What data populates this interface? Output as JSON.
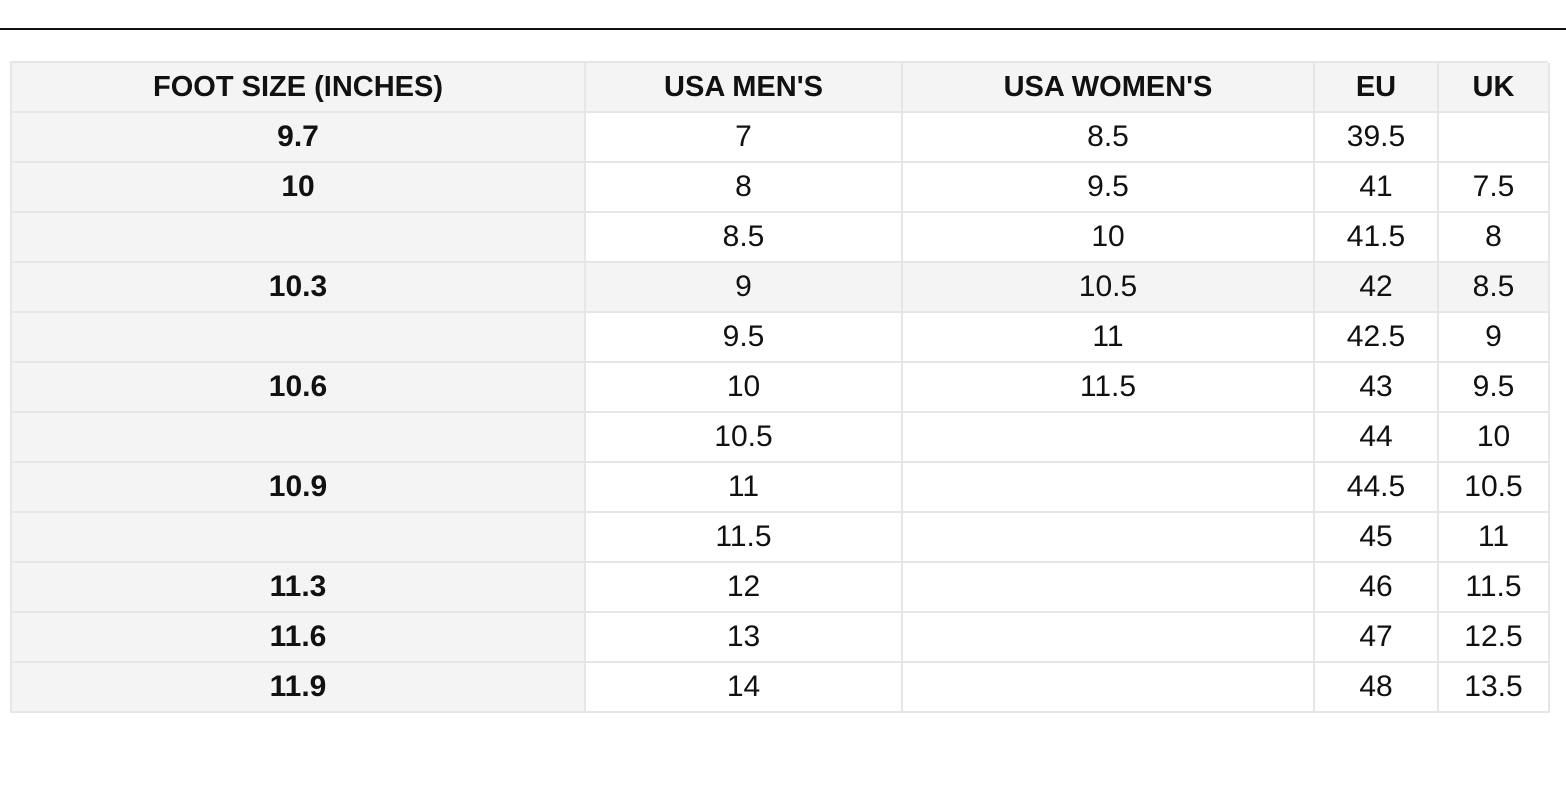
{
  "table": {
    "header": [
      "FOOT SIZE (INCHES)",
      "USA MEN'S",
      "USA WOMEN'S",
      "EU",
      "UK"
    ],
    "rows": [
      [
        "9.7",
        "7",
        "8.5",
        "39.5",
        null
      ],
      [
        "10",
        "8",
        "9.5",
        "41",
        "7.5"
      ],
      [
        null,
        "8.5",
        "10",
        "41.5",
        "8"
      ],
      [
        "10.3",
        "9",
        "10.5",
        "42",
        "8.5"
      ],
      [
        null,
        "9.5",
        "11",
        "42.5",
        "9"
      ],
      [
        "10.6",
        "10",
        "11.5",
        "43",
        "9.5"
      ],
      [
        null,
        "10.5",
        null,
        "44",
        "10"
      ],
      [
        "10.9",
        "11",
        null,
        "44.5",
        "10.5"
      ],
      [
        null,
        "11.5",
        null,
        "45",
        "11"
      ],
      [
        "11.3",
        "12",
        null,
        "46",
        "11.5"
      ],
      [
        "11.6",
        "13",
        null,
        "47",
        "12.5"
      ],
      [
        "11.9",
        "14",
        null,
        "48",
        "13.5"
      ]
    ]
  }
}
